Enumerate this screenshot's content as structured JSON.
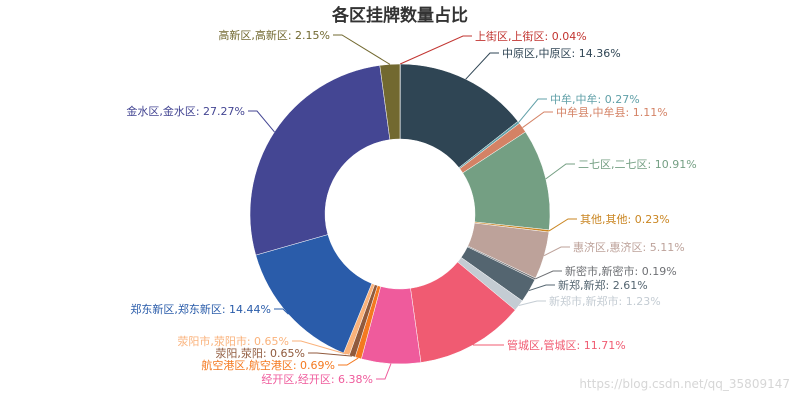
{
  "chart_data": {
    "type": "pie",
    "title": "各区挂牌数量占比",
    "donut": true,
    "slices": [
      {
        "label": "上街区,上街区: 0.04%",
        "value": 0.04,
        "color": "#c23531"
      },
      {
        "label": "中原区,中原区: 14.36%",
        "value": 14.36,
        "color": "#2f4554"
      },
      {
        "label": "中牟,中牟: 0.27%",
        "value": 0.27,
        "color": "#61a0a8"
      },
      {
        "label": "中牟县,中牟县: 1.11%",
        "value": 1.11,
        "color": "#d48265"
      },
      {
        "label": "二七区,二七区: 10.91%",
        "value": 10.91,
        "color": "#749f83"
      },
      {
        "label": "其他,其他: 0.23%",
        "value": 0.23,
        "color": "#ca8622"
      },
      {
        "label": "惠济区,惠济区: 5.11%",
        "value": 5.11,
        "color": "#bda29a"
      },
      {
        "label": "新密市,新密市: 0.19%",
        "value": 0.19,
        "color": "#6e7074"
      },
      {
        "label": "新郑,新郑: 2.61%",
        "value": 2.61,
        "color": "#546570"
      },
      {
        "label": "新郑市,新郑市: 1.23%",
        "value": 1.23,
        "color": "#c4ccd3"
      },
      {
        "label": "管城区,管城区: 11.71%",
        "value": 11.71,
        "color": "#f05b72"
      },
      {
        "label": "经开区,经开区: 6.38%",
        "value": 6.38,
        "color": "#ef5b9c"
      },
      {
        "label": "航空港区,航空港区: 0.69%",
        "value": 0.69,
        "color": "#f47920"
      },
      {
        "label": "荥阳,荥阳: 0.65%",
        "value": 0.65,
        "color": "#905a3d"
      },
      {
        "label": "荥阳市,荥阳市: 0.65%",
        "value": 0.65,
        "color": "#fab27b"
      },
      {
        "label": "郑东新区,郑东新区: 14.44%",
        "value": 14.44,
        "color": "#2a5caa"
      },
      {
        "label": "金水区,金水区: 27.27%",
        "value": 27.27,
        "color": "#444693"
      },
      {
        "label": "高新区,高新区: 2.15%",
        "value": 2.15,
        "color": "#726930"
      }
    ]
  },
  "watermark": "https://blog.csdn.net/qq_35809147"
}
